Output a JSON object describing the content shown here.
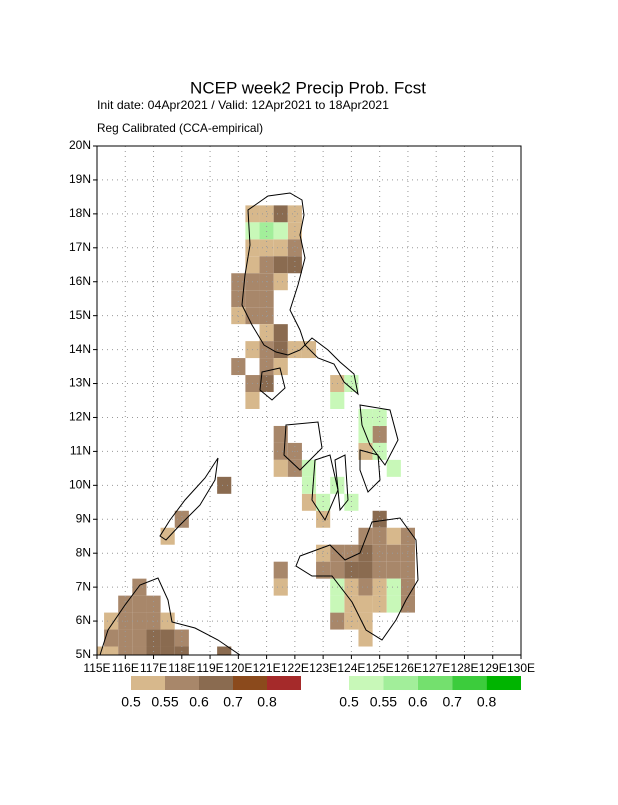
{
  "chart_data": {
    "type": "probability-map",
    "title": "NCEP week2 Precip Prob. Fcst",
    "subtitle": "Init date: 04Apr2021 / Valid: 12Apr2021 to 18Apr2021",
    "subtitle2": "Reg Calibrated (CCA-empirical)",
    "xlim": [
      115,
      130
    ],
    "ylim": [
      5,
      20
    ],
    "xticks": [
      {
        "value": 115,
        "label": "115E"
      },
      {
        "value": 116,
        "label": "116E"
      },
      {
        "value": 117,
        "label": "117E"
      },
      {
        "value": 118,
        "label": "118E"
      },
      {
        "value": 119,
        "label": "119E"
      },
      {
        "value": 120,
        "label": "120E"
      },
      {
        "value": 121,
        "label": "121E"
      },
      {
        "value": 122,
        "label": "122E"
      },
      {
        "value": 123,
        "label": "123E"
      },
      {
        "value": 124,
        "label": "124E"
      },
      {
        "value": 125,
        "label": "125E"
      },
      {
        "value": 126,
        "label": "126E"
      },
      {
        "value": 127,
        "label": "127E"
      },
      {
        "value": 128,
        "label": "128E"
      },
      {
        "value": 129,
        "label": "129E"
      },
      {
        "value": 130,
        "label": "130E"
      }
    ],
    "yticks": [
      {
        "value": 5,
        "label": "5N"
      },
      {
        "value": 6,
        "label": "6N"
      },
      {
        "value": 7,
        "label": "7N"
      },
      {
        "value": 8,
        "label": "8N"
      },
      {
        "value": 9,
        "label": "9N"
      },
      {
        "value": 10,
        "label": "10N"
      },
      {
        "value": 11,
        "label": "11N"
      },
      {
        "value": 12,
        "label": "12N"
      },
      {
        "value": 13,
        "label": "13N"
      },
      {
        "value": 14,
        "label": "14N"
      },
      {
        "value": 15,
        "label": "15N"
      },
      {
        "value": 16,
        "label": "16N"
      },
      {
        "value": 17,
        "label": "17N"
      },
      {
        "value": 18,
        "label": "18N"
      },
      {
        "value": 19,
        "label": "19N"
      },
      {
        "value": 20,
        "label": "20N"
      }
    ],
    "grid": true,
    "levels": [
      0.5,
      0.55,
      0.6,
      0.7,
      0.8
    ],
    "dry_colors": [
      "#d7b88c",
      "#a8876a",
      "#8a6b50",
      "#8b4a1c",
      "#a52a2a"
    ],
    "wet_colors": [
      "#c8f8b8",
      "#a2ee9a",
      "#74e06e",
      "#3ccc3c",
      "#00b400"
    ],
    "dry_cells": [
      [
        120.5,
        18,
        0.5
      ],
      [
        121,
        18,
        0.5
      ],
      [
        121.5,
        18,
        0.6
      ],
      [
        122,
        18,
        0.5
      ],
      [
        122,
        17.5,
        0.5
      ],
      [
        120.5,
        17,
        0.5
      ],
      [
        121,
        17,
        0.5
      ],
      [
        121.5,
        17,
        0.5
      ],
      [
        122,
        17,
        0.55
      ],
      [
        120.5,
        16.5,
        0.5
      ],
      [
        121,
        16.5,
        0.55
      ],
      [
        121.5,
        16.5,
        0.6
      ],
      [
        122,
        16.5,
        0.6
      ],
      [
        120,
        16,
        0.55
      ],
      [
        120.5,
        16,
        0.55
      ],
      [
        121,
        16,
        0.55
      ],
      [
        121.5,
        16,
        0.5
      ],
      [
        120,
        15.5,
        0.55
      ],
      [
        120.5,
        15.5,
        0.55
      ],
      [
        121,
        15.5,
        0.55
      ],
      [
        120,
        15,
        0.5
      ],
      [
        120.5,
        15,
        0.55
      ],
      [
        121,
        15,
        0.55
      ],
      [
        121,
        14.5,
        0.5
      ],
      [
        121.5,
        14.5,
        0.6
      ],
      [
        120.5,
        14,
        0.5
      ],
      [
        121,
        14,
        0.55
      ],
      [
        121.5,
        14,
        0.6
      ],
      [
        122,
        14,
        0.5
      ],
      [
        122.5,
        14,
        0.5
      ],
      [
        120,
        13.5,
        0.55
      ],
      [
        121,
        13.5,
        0.55
      ],
      [
        121.5,
        13.5,
        0.5
      ],
      [
        120.5,
        13,
        0.55
      ],
      [
        121,
        13,
        0.6
      ],
      [
        123.5,
        13,
        0.5
      ],
      [
        120.5,
        12.5,
        0.5
      ],
      [
        121.5,
        11.5,
        0.55
      ],
      [
        125,
        11.5,
        0.55
      ],
      [
        121.5,
        11,
        0.55
      ],
      [
        122,
        11,
        0.55
      ],
      [
        124.5,
        11,
        0.5
      ],
      [
        121.5,
        10.5,
        0.5
      ],
      [
        122,
        10.5,
        0.55
      ],
      [
        119.5,
        10,
        0.6
      ],
      [
        122.5,
        9.5,
        0.5
      ],
      [
        118,
        9,
        0.55
      ],
      [
        123,
        9,
        0.5
      ],
      [
        125,
        9,
        0.6
      ],
      [
        117.5,
        8.5,
        0.5
      ],
      [
        124.5,
        8.5,
        0.55
      ],
      [
        125,
        8.5,
        0.55
      ],
      [
        125.5,
        8.5,
        0.5
      ],
      [
        126,
        8.5,
        0.55
      ],
      [
        123,
        8,
        0.5
      ],
      [
        123.5,
        8,
        0.55
      ],
      [
        124,
        8,
        0.55
      ],
      [
        124.5,
        8,
        0.6
      ],
      [
        125,
        8,
        0.55
      ],
      [
        125.5,
        8,
        0.55
      ],
      [
        126,
        8,
        0.55
      ],
      [
        121.5,
        7.5,
        0.55
      ],
      [
        123,
        7.5,
        0.55
      ],
      [
        123.5,
        7.5,
        0.55
      ],
      [
        124,
        7.5,
        0.6
      ],
      [
        124.5,
        7.5,
        0.6
      ],
      [
        125,
        7.5,
        0.55
      ],
      [
        125.5,
        7.5,
        0.55
      ],
      [
        126,
        7.5,
        0.55
      ],
      [
        116.5,
        7,
        0.55
      ],
      [
        121.5,
        7,
        0.5
      ],
      [
        124,
        7,
        0.5
      ],
      [
        124.5,
        7,
        0.55
      ],
      [
        125,
        7,
        0.5
      ],
      [
        126,
        7,
        0.55
      ],
      [
        116,
        6.5,
        0.55
      ],
      [
        116.5,
        6.5,
        0.55
      ],
      [
        117,
        6.5,
        0.55
      ],
      [
        124,
        6.5,
        0.5
      ],
      [
        124.5,
        6.5,
        0.5
      ],
      [
        125,
        6.5,
        0.5
      ],
      [
        126,
        6.5,
        0.55
      ],
      [
        115.5,
        6,
        0.5
      ],
      [
        116,
        6,
        0.55
      ],
      [
        116.5,
        6,
        0.55
      ],
      [
        117,
        6,
        0.55
      ],
      [
        117.5,
        6,
        0.5
      ],
      [
        123.5,
        6,
        0.55
      ],
      [
        124,
        6,
        0.5
      ],
      [
        124.5,
        6,
        0.5
      ],
      [
        115.5,
        5.5,
        0.55
      ],
      [
        116,
        5.5,
        0.55
      ],
      [
        116.5,
        5.5,
        0.55
      ],
      [
        117,
        5.5,
        0.6
      ],
      [
        117.5,
        5.5,
        0.6
      ],
      [
        118,
        5.5,
        0.55
      ],
      [
        124.5,
        5.5,
        0.5
      ],
      [
        115,
        5,
        0.5
      ],
      [
        115.5,
        5,
        0.5
      ],
      [
        116,
        5,
        0.55
      ],
      [
        116.5,
        5,
        0.55
      ],
      [
        117,
        5,
        0.6
      ],
      [
        117.5,
        5,
        0.6
      ],
      [
        118,
        5,
        0.6
      ],
      [
        119.5,
        5,
        0.6
      ]
    ],
    "wet_cells": [
      [
        120.5,
        17.5,
        0.5
      ],
      [
        121,
        17.5,
        0.55
      ],
      [
        121.5,
        17.5,
        0.5
      ],
      [
        124,
        13,
        0.5
      ],
      [
        123.5,
        12.5,
        0.5
      ],
      [
        124.5,
        12,
        0.5
      ],
      [
        125,
        12,
        0.5
      ],
      [
        124.5,
        11.5,
        0.5
      ],
      [
        125,
        11,
        0.5
      ],
      [
        122.5,
        10.5,
        0.5
      ],
      [
        125.5,
        10.5,
        0.5
      ],
      [
        122.5,
        10,
        0.5
      ],
      [
        123.5,
        10,
        0.5
      ],
      [
        123,
        9.5,
        0.5
      ],
      [
        124,
        9.5,
        0.5
      ],
      [
        123.5,
        7,
        0.5
      ],
      [
        125.5,
        7,
        0.5
      ],
      [
        123.5,
        6.5,
        0.5
      ],
      [
        125.5,
        6.5,
        0.5
      ]
    ]
  }
}
